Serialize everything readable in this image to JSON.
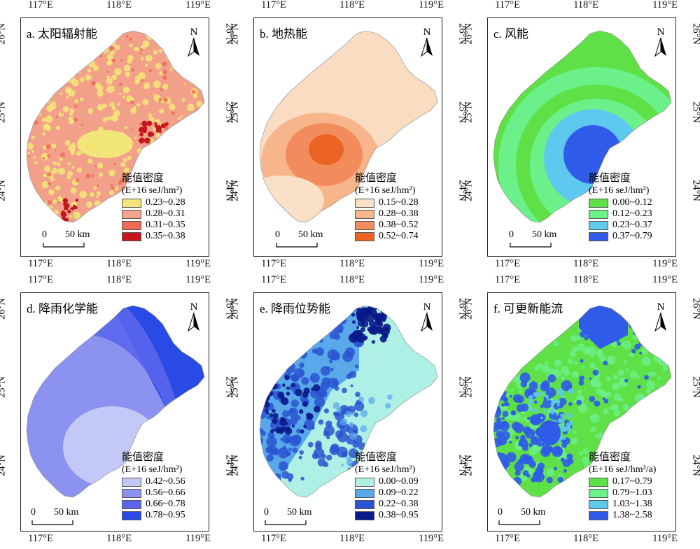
{
  "ticks": {
    "lon": [
      "117°E",
      "118°E",
      "119°E"
    ],
    "lat": [
      "26°N",
      "25°N",
      "24°N"
    ]
  },
  "north_label": "N",
  "scale": {
    "zero": "0",
    "label": "50 km"
  },
  "legend_title": "能值密度",
  "panels": [
    {
      "id": "a",
      "title": "a. 太阳辐射能",
      "unit": "(E+16 seJ/hm²)",
      "base_color": "#f2a08a",
      "classes": [
        {
          "label": "0.23~0.28",
          "color": "#f3e678"
        },
        {
          "label": "0.28~0.31",
          "color": "#f4a68e"
        },
        {
          "label": "0.31~0.35",
          "color": "#ee6a55"
        },
        {
          "label": "0.35~0.38",
          "color": "#c4161c"
        }
      ]
    },
    {
      "id": "b",
      "title": "b. 地热能",
      "unit": "(E+16 seJ/hm²)",
      "base_color": "#f9dcc2",
      "classes": [
        {
          "label": "0.15~0.28",
          "color": "#fbe0c8"
        },
        {
          "label": "0.28~0.38",
          "color": "#f7b58c"
        },
        {
          "label": "0.38~0.52",
          "color": "#f28c5c"
        },
        {
          "label": "0.52~0.74",
          "color": "#ec6424"
        }
      ]
    },
    {
      "id": "c",
      "title": "c. 风能",
      "unit": "(E+16 seJ/hm²)",
      "base_color": "#5fe046",
      "classes": [
        {
          "label": "0.00~0.12",
          "color": "#5fe046"
        },
        {
          "label": "0.12~0.23",
          "color": "#6cf08a"
        },
        {
          "label": "0.23~0.37",
          "color": "#5fc8ef"
        },
        {
          "label": "0.37~0.79",
          "color": "#2f5be8"
        }
      ]
    },
    {
      "id": "d",
      "title": "d. 降雨化学能",
      "unit": "(E+16 seJ/hm²)",
      "base_color": "#8c92f0",
      "classes": [
        {
          "label": "0.42~0.56",
          "color": "#c4c8f6"
        },
        {
          "label": "0.56~0.66",
          "color": "#8c92f0"
        },
        {
          "label": "0.66~0.78",
          "color": "#5a66ec"
        },
        {
          "label": "0.78~0.95",
          "color": "#2a4ae6"
        }
      ]
    },
    {
      "id": "e",
      "title": "e. 降雨位势能",
      "unit": "(E+16 seJ/hm²)",
      "base_color": "#aef0e6",
      "classes": [
        {
          "label": "0.00~0.09",
          "color": "#aef0e6"
        },
        {
          "label": "0.09~0.22",
          "color": "#58a8ea"
        },
        {
          "label": "0.22~0.38",
          "color": "#2a54d0"
        },
        {
          "label": "0.38~0.95",
          "color": "#0a1a8a"
        }
      ]
    },
    {
      "id": "f",
      "title": "f. 可更新能流",
      "unit": "(E+16 seJ/hm²/a)",
      "base_color": "#5fe046",
      "classes": [
        {
          "label": "0.17~0.79",
          "color": "#5fe046"
        },
        {
          "label": "0.79~1.03",
          "color": "#6cf08a"
        },
        {
          "label": "1.03~1.38",
          "color": "#5fc8ef"
        },
        {
          "label": "1.38~2.58",
          "color": "#2f5be8"
        }
      ]
    }
  ]
}
